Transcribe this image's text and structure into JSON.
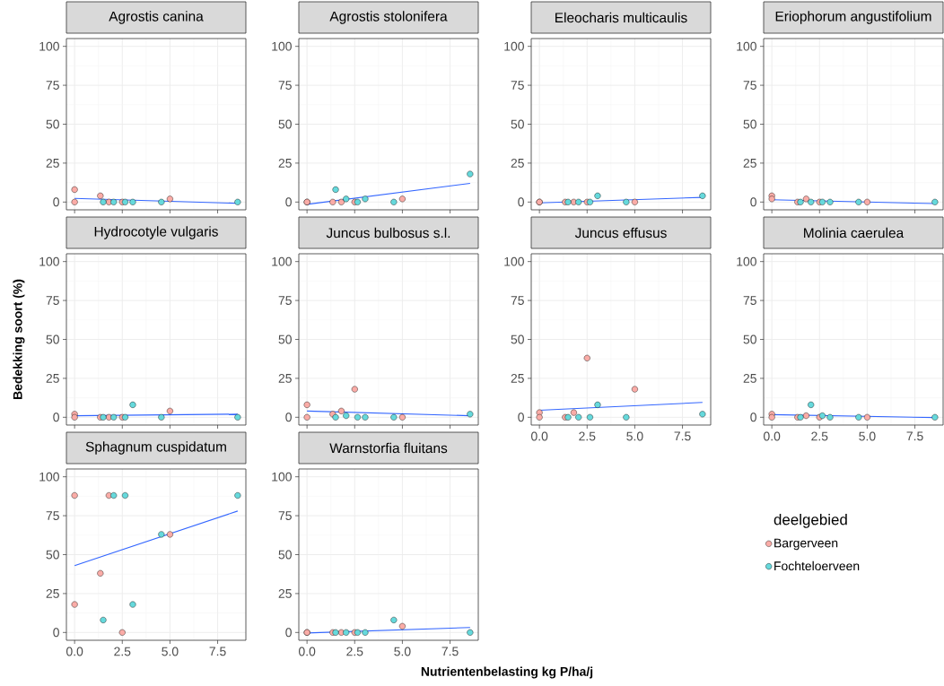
{
  "chart_data": [
    {
      "type": "scatter",
      "title": "Agrostis canina",
      "xlim": [
        -0.43,
        8.98
      ],
      "ylim": [
        -5,
        105
      ],
      "xticks": [
        {
          "value": 0,
          "label": null
        },
        {
          "value": 2.5,
          "label": null
        },
        {
          "value": 5,
          "label": null
        },
        {
          "value": 7.5,
          "label": null
        }
      ],
      "yticks": [
        0,
        25,
        50,
        75,
        100
      ],
      "grid": true,
      "marker": "circle",
      "tick_labels": "y",
      "series": [
        {
          "color": "#faaca7",
          "x": [
            0,
            0,
            1.35,
            1.8,
            2.5,
            5.0
          ],
          "values": [
            8,
            0,
            4,
            0,
            0,
            2
          ]
        },
        {
          "color": "#66d9dc",
          "x": [
            1.5,
            2.05,
            2.65,
            3.05,
            4.55,
            8.55
          ],
          "values": [
            0,
            0,
            0,
            0,
            0,
            0
          ]
        },
        {
          "type": "line",
          "marker": "none",
          "color": "#3366ff",
          "x": [
            0,
            8.55
          ],
          "values": [
            2.3,
            -0.8
          ]
        }
      ]
    },
    {
      "type": "scatter",
      "title": "Agrostis stolonifera",
      "xlim": [
        -0.43,
        8.98
      ],
      "ylim": [
        -5,
        105
      ],
      "xticks": [
        {
          "value": 0,
          "label": null
        },
        {
          "value": 2.5,
          "label": null
        },
        {
          "value": 5,
          "label": null
        },
        {
          "value": 7.5,
          "label": null
        }
      ],
      "yticks": [
        0,
        25,
        50,
        75,
        100
      ],
      "grid": true,
      "marker": "circle",
      "tick_labels": "y",
      "series": [
        {
          "color": "#faaca7",
          "x": [
            0,
            0,
            1.35,
            1.8,
            2.5,
            5.0
          ],
          "values": [
            0,
            0,
            0,
            0,
            0,
            2
          ]
        },
        {
          "color": "#66d9dc",
          "x": [
            1.5,
            2.05,
            2.65,
            3.05,
            4.55,
            8.55
          ],
          "values": [
            8,
            2,
            0,
            2,
            0,
            18
          ]
        },
        {
          "type": "line",
          "marker": "none",
          "color": "#3366ff",
          "x": [
            0,
            8.55
          ],
          "values": [
            -1.5,
            12
          ]
        }
      ]
    },
    {
      "type": "scatter",
      "title": "Eleocharis multicaulis",
      "xlim": [
        -0.43,
        8.98
      ],
      "ylim": [
        -5,
        105
      ],
      "xticks": [
        {
          "value": 0,
          "label": null
        },
        {
          "value": 2.5,
          "label": null
        },
        {
          "value": 5,
          "label": null
        },
        {
          "value": 7.5,
          "label": null
        }
      ],
      "yticks": [
        0,
        25,
        50,
        75,
        100
      ],
      "grid": true,
      "marker": "circle",
      "tick_labels": "y",
      "series": [
        {
          "color": "#faaca7",
          "x": [
            0,
            0,
            1.35,
            1.8,
            2.5,
            5.0
          ],
          "values": [
            0,
            0,
            0,
            0,
            0,
            0
          ]
        },
        {
          "color": "#66d9dc",
          "x": [
            1.5,
            2.05,
            2.65,
            3.05,
            4.55,
            8.55
          ],
          "values": [
            0,
            0,
            0,
            4,
            0,
            4
          ]
        },
        {
          "type": "line",
          "marker": "none",
          "color": "#3366ff",
          "x": [
            0,
            8.55
          ],
          "values": [
            -0.5,
            3
          ]
        }
      ]
    },
    {
      "type": "scatter",
      "title": "Eriophorum angustifolium",
      "xlim": [
        -0.43,
        8.98
      ],
      "ylim": [
        -5,
        105
      ],
      "xticks": [
        {
          "value": 0,
          "label": null
        },
        {
          "value": 2.5,
          "label": null
        },
        {
          "value": 5,
          "label": null
        },
        {
          "value": 7.5,
          "label": null
        }
      ],
      "yticks": [
        0,
        25,
        50,
        75,
        100
      ],
      "grid": true,
      "marker": "circle",
      "tick_labels": "y",
      "series": [
        {
          "color": "#faaca7",
          "x": [
            0,
            0,
            1.35,
            1.8,
            2.5,
            5.0
          ],
          "values": [
            4,
            2,
            0,
            2,
            0,
            0
          ]
        },
        {
          "color": "#66d9dc",
          "x": [
            1.5,
            2.05,
            2.65,
            3.05,
            4.55,
            8.55
          ],
          "values": [
            0,
            0,
            0,
            0,
            0,
            0
          ]
        },
        {
          "type": "line",
          "marker": "none",
          "color": "#3366ff",
          "x": [
            0,
            8.55
          ],
          "values": [
            1.5,
            -1
          ]
        }
      ]
    },
    {
      "type": "scatter",
      "title": "Hydrocotyle vulgaris",
      "ylabel": "Bedekking soort (%)",
      "xlim": [
        -0.43,
        8.98
      ],
      "ylim": [
        -5,
        105
      ],
      "xticks": [
        {
          "value": 0,
          "label": null
        },
        {
          "value": 2.5,
          "label": null
        },
        {
          "value": 5,
          "label": null
        },
        {
          "value": 7.5,
          "label": null
        }
      ],
      "yticks": [
        0,
        25,
        50,
        75,
        100
      ],
      "grid": true,
      "marker": "circle",
      "tick_labels": "y",
      "series": [
        {
          "color": "#faaca7",
          "x": [
            0,
            0,
            1.35,
            1.8,
            2.5,
            5.0
          ],
          "values": [
            2,
            0,
            0,
            0,
            0,
            4
          ]
        },
        {
          "color": "#66d9dc",
          "x": [
            1.5,
            2.05,
            2.65,
            3.05,
            4.55,
            8.55
          ],
          "values": [
            0,
            0,
            0,
            8,
            0,
            0
          ]
        },
        {
          "type": "line",
          "marker": "none",
          "color": "#3366ff",
          "x": [
            0,
            8.55
          ],
          "values": [
            1,
            2
          ]
        }
      ]
    },
    {
      "type": "scatter",
      "title": "Juncus bulbosus s.l.",
      "xlim": [
        -0.43,
        8.98
      ],
      "ylim": [
        -5,
        105
      ],
      "xticks": [
        {
          "value": 0,
          "label": null
        },
        {
          "value": 2.5,
          "label": null
        },
        {
          "value": 5,
          "label": null
        },
        {
          "value": 7.5,
          "label": null
        }
      ],
      "yticks": [
        0,
        25,
        50,
        75,
        100
      ],
      "grid": true,
      "marker": "circle",
      "tick_labels": "y",
      "series": [
        {
          "color": "#faaca7",
          "x": [
            0,
            0,
            1.35,
            1.8,
            2.5,
            5.0
          ],
          "values": [
            8,
            0,
            2,
            4,
            18,
            0
          ]
        },
        {
          "color": "#66d9dc",
          "x": [
            1.5,
            2.05,
            2.65,
            3.05,
            4.55,
            8.55
          ],
          "values": [
            0,
            1,
            0,
            0,
            0,
            2
          ]
        },
        {
          "type": "line",
          "marker": "none",
          "color": "#3366ff",
          "x": [
            0,
            8.55
          ],
          "values": [
            4,
            1
          ]
        }
      ]
    },
    {
      "type": "scatter",
      "title": "Juncus effusus",
      "xlim": [
        -0.43,
        8.98
      ],
      "ylim": [
        -5,
        105
      ],
      "xticks": [
        {
          "value": 0,
          "label": "0.0"
        },
        {
          "value": 2.5,
          "label": "2.5"
        },
        {
          "value": 5,
          "label": "5.0"
        },
        {
          "value": 7.5,
          "label": "7.5"
        }
      ],
      "yticks": [
        0,
        25,
        50,
        75,
        100
      ],
      "grid": true,
      "marker": "circle",
      "series": [
        {
          "color": "#faaca7",
          "x": [
            0,
            0,
            1.35,
            1.8,
            2.5,
            5.0
          ],
          "values": [
            3,
            0,
            0,
            3,
            38,
            18
          ]
        },
        {
          "color": "#66d9dc",
          "x": [
            1.5,
            2.05,
            2.65,
            3.05,
            4.55,
            8.55
          ],
          "values": [
            0,
            0,
            0,
            8,
            0,
            2
          ]
        },
        {
          "type": "line",
          "marker": "none",
          "color": "#3366ff",
          "x": [
            0,
            8.55
          ],
          "values": [
            4.5,
            9.5
          ]
        }
      ]
    },
    {
      "type": "scatter",
      "title": "Molinia caerulea",
      "xlim": [
        -0.43,
        8.98
      ],
      "ylim": [
        -5,
        105
      ],
      "xticks": [
        {
          "value": 0,
          "label": "0.0"
        },
        {
          "value": 2.5,
          "label": "2.5"
        },
        {
          "value": 5,
          "label": "5.0"
        },
        {
          "value": 7.5,
          "label": "7.5"
        }
      ],
      "yticks": [
        0,
        25,
        50,
        75,
        100
      ],
      "grid": true,
      "marker": "circle",
      "series": [
        {
          "color": "#faaca7",
          "x": [
            0,
            0,
            1.35,
            1.8,
            2.5,
            5.0
          ],
          "values": [
            2,
            0,
            0,
            1,
            0,
            0
          ]
        },
        {
          "color": "#66d9dc",
          "x": [
            1.5,
            2.05,
            2.65,
            3.05,
            4.55,
            8.55
          ],
          "values": [
            0,
            8,
            1,
            0,
            0,
            0
          ]
        },
        {
          "type": "line",
          "marker": "none",
          "color": "#3366ff",
          "x": [
            0,
            8.55
          ],
          "values": [
            1.7,
            -0.2
          ]
        }
      ]
    },
    {
      "type": "scatter",
      "title": "Sphagnum cuspidatum",
      "xlim": [
        -0.43,
        8.98
      ],
      "ylim": [
        -5,
        105
      ],
      "xticks": [
        {
          "value": 0,
          "label": "0.0"
        },
        {
          "value": 2.5,
          "label": "2.5"
        },
        {
          "value": 5,
          "label": "5.0"
        },
        {
          "value": 7.5,
          "label": "7.5"
        }
      ],
      "yticks": [
        0,
        25,
        50,
        75,
        100
      ],
      "grid": true,
      "marker": "circle",
      "series": [
        {
          "color": "#faaca7",
          "x": [
            0,
            0,
            1.35,
            1.8,
            2.5,
            5.0
          ],
          "values": [
            88,
            18,
            38,
            88,
            0,
            63
          ]
        },
        {
          "color": "#66d9dc",
          "x": [
            1.5,
            2.05,
            2.65,
            3.05,
            4.55,
            8.55
          ],
          "values": [
            8,
            88,
            88,
            18,
            63,
            88
          ]
        },
        {
          "type": "line",
          "marker": "none",
          "color": "#3366ff",
          "x": [
            0,
            8.55
          ],
          "values": [
            43,
            78
          ]
        }
      ]
    },
    {
      "type": "scatter",
      "title": "Warnstorfia fluitans",
      "xlabel": "Nutrientenbelasting kg P/ha/j",
      "legend": "right",
      "legend_title": "deelgebied",
      "xlim": [
        -0.43,
        8.98
      ],
      "ylim": [
        -5,
        105
      ],
      "xticks": [
        {
          "value": 0,
          "label": "0.0"
        },
        {
          "value": 2.5,
          "label": "2.5"
        },
        {
          "value": 5,
          "label": "5.0"
        },
        {
          "value": 7.5,
          "label": "7.5"
        }
      ],
      "yticks": [
        0,
        25,
        50,
        75,
        100
      ],
      "grid": true,
      "marker": "circle",
      "series": [
        {
          "name": "Bargerveen",
          "color": "#faaca7",
          "x": [
            0,
            0,
            1.35,
            1.8,
            2.5,
            5.0
          ],
          "values": [
            0,
            0,
            0,
            0,
            0,
            4
          ]
        },
        {
          "name": "Fochteloerveen",
          "color": "#66d9dc",
          "x": [
            1.5,
            2.05,
            2.65,
            3.05,
            4.55,
            8.55
          ],
          "values": [
            0,
            0,
            0,
            0,
            8,
            0
          ]
        },
        {
          "type": "line",
          "marker": "none",
          "color": "#3366ff",
          "x": [
            0,
            8.55
          ],
          "values": [
            -0.3,
            3.2
          ]
        }
      ]
    }
  ]
}
